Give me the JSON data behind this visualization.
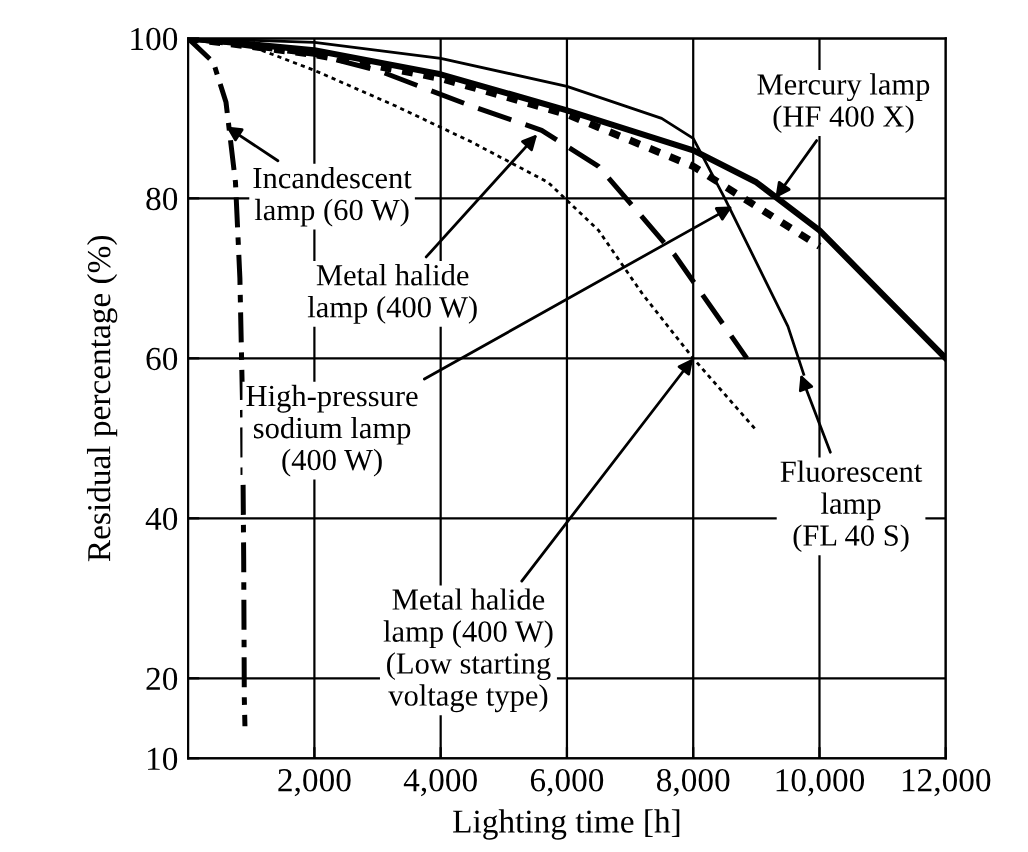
{
  "chart_data": {
    "type": "line",
    "xlabel": "Lighting time [h]",
    "ylabel": "Residual percentage (%)",
    "xlim": [
      0,
      12000
    ],
    "ylim": [
      10,
      100
    ],
    "xticks": [
      {
        "value": 2000,
        "label": "2,000"
      },
      {
        "value": 4000,
        "label": "4,000"
      },
      {
        "value": 6000,
        "label": "6,000"
      },
      {
        "value": 8000,
        "label": "8,000"
      },
      {
        "value": 10000,
        "label": "10,000"
      },
      {
        "value": 12000,
        "label": "12,000"
      }
    ],
    "yticks": [
      10,
      20,
      40,
      60,
      80,
      100
    ],
    "grid": true,
    "legend": false,
    "marker": "none",
    "series": [
      {
        "color": "#000000",
        "line_style": "dashdot",
        "x": [
          0,
          400,
          600,
          750,
          820,
          860,
          880,
          890,
          900
        ],
        "values": [
          100,
          97,
          92,
          82,
          70,
          55,
          35,
          17.5,
          14
        ]
      },
      {
        "color": "#000000",
        "line_style": "dashed",
        "x": [
          0,
          2000,
          3000,
          4500,
          5600,
          6500,
          7700,
          8850
        ],
        "values": [
          100,
          98,
          96,
          91.5,
          88.5,
          84,
          73,
          60
        ]
      },
      {
        "color": "#000000",
        "line_style": "dotted",
        "x": [
          0,
          2000,
          4000,
          6000,
          8000,
          9000,
          10000
        ],
        "values": [
          100,
          98,
          95,
          90.5,
          84,
          79,
          74
        ]
      },
      {
        "color": "#000000",
        "line_style": "dotted",
        "x": [
          0,
          1000,
          2000,
          3300,
          4500,
          5700,
          6500,
          7200,
          8000,
          9000
        ],
        "values": [
          100,
          99,
          96,
          91.5,
          87,
          82,
          76,
          68,
          60,
          51
        ]
      },
      {
        "color": "#000000",
        "line_style": "solid",
        "x": [
          0,
          2000,
          4000,
          6000,
          8000,
          9000,
          10000,
          11000,
          12000
        ],
        "values": [
          100,
          98.5,
          95.5,
          91,
          86,
          82,
          76,
          68,
          60
        ]
      },
      {
        "color": "#000000",
        "line_style": "solid",
        "x": [
          0,
          2000,
          4000,
          6000,
          7500,
          8000,
          8500,
          9000,
          9500,
          9750
        ],
        "values": [
          100,
          99.5,
          97.5,
          94,
          90,
          87.5,
          80,
          72,
          64,
          58
        ]
      }
    ],
    "annotations": [
      {
        "text": "Incandescent\nlamp (60 W)",
        "x": 600,
        "y": 89
      },
      {
        "text": "Metal halide\nlamp (400 W)",
        "x": 5530,
        "y": 88
      },
      {
        "text": "High-pressure\nsodium lamp\n(400 W)",
        "x": 8625,
        "y": 79
      },
      {
        "text": "Metal halide\nlamp (400 W)\n(Low starting\nvoltage type)",
        "x": 8000,
        "y": 60
      },
      {
        "text": "Mercury lamp\n(HF 400 X)",
        "x": 9300,
        "y": 80
      },
      {
        "text": "Fluorescent\nlamp\n(FL 40 S)",
        "x": 9700,
        "y": 58
      }
    ]
  }
}
